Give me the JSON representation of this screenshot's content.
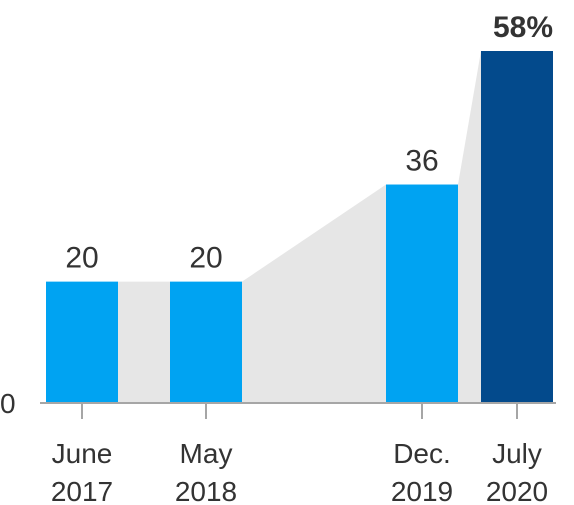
{
  "chart_data": {
    "type": "bar",
    "categories": [
      "June\n2017",
      "May\n2018",
      "Dec.\n2019",
      "July\n2020"
    ],
    "category_lines": [
      [
        "June",
        "2017"
      ],
      [
        "May",
        "2018"
      ],
      [
        "Dec.",
        "2019"
      ],
      [
        "July",
        "2020"
      ]
    ],
    "values": [
      20,
      20,
      36,
      58
    ],
    "value_labels": [
      "20",
      "20",
      "36",
      "58%"
    ],
    "y_tick_label": "0",
    "ylim": [
      0,
      58
    ],
    "title": "",
    "xlabel": "",
    "ylabel": "",
    "grid": false,
    "legend": "none",
    "colors": {
      "bar": "#00a3f2",
      "highlight_bar": "#034a8c",
      "connector": "#e6e6e6",
      "axis": "#a6a6a6",
      "text": "#333333"
    }
  }
}
